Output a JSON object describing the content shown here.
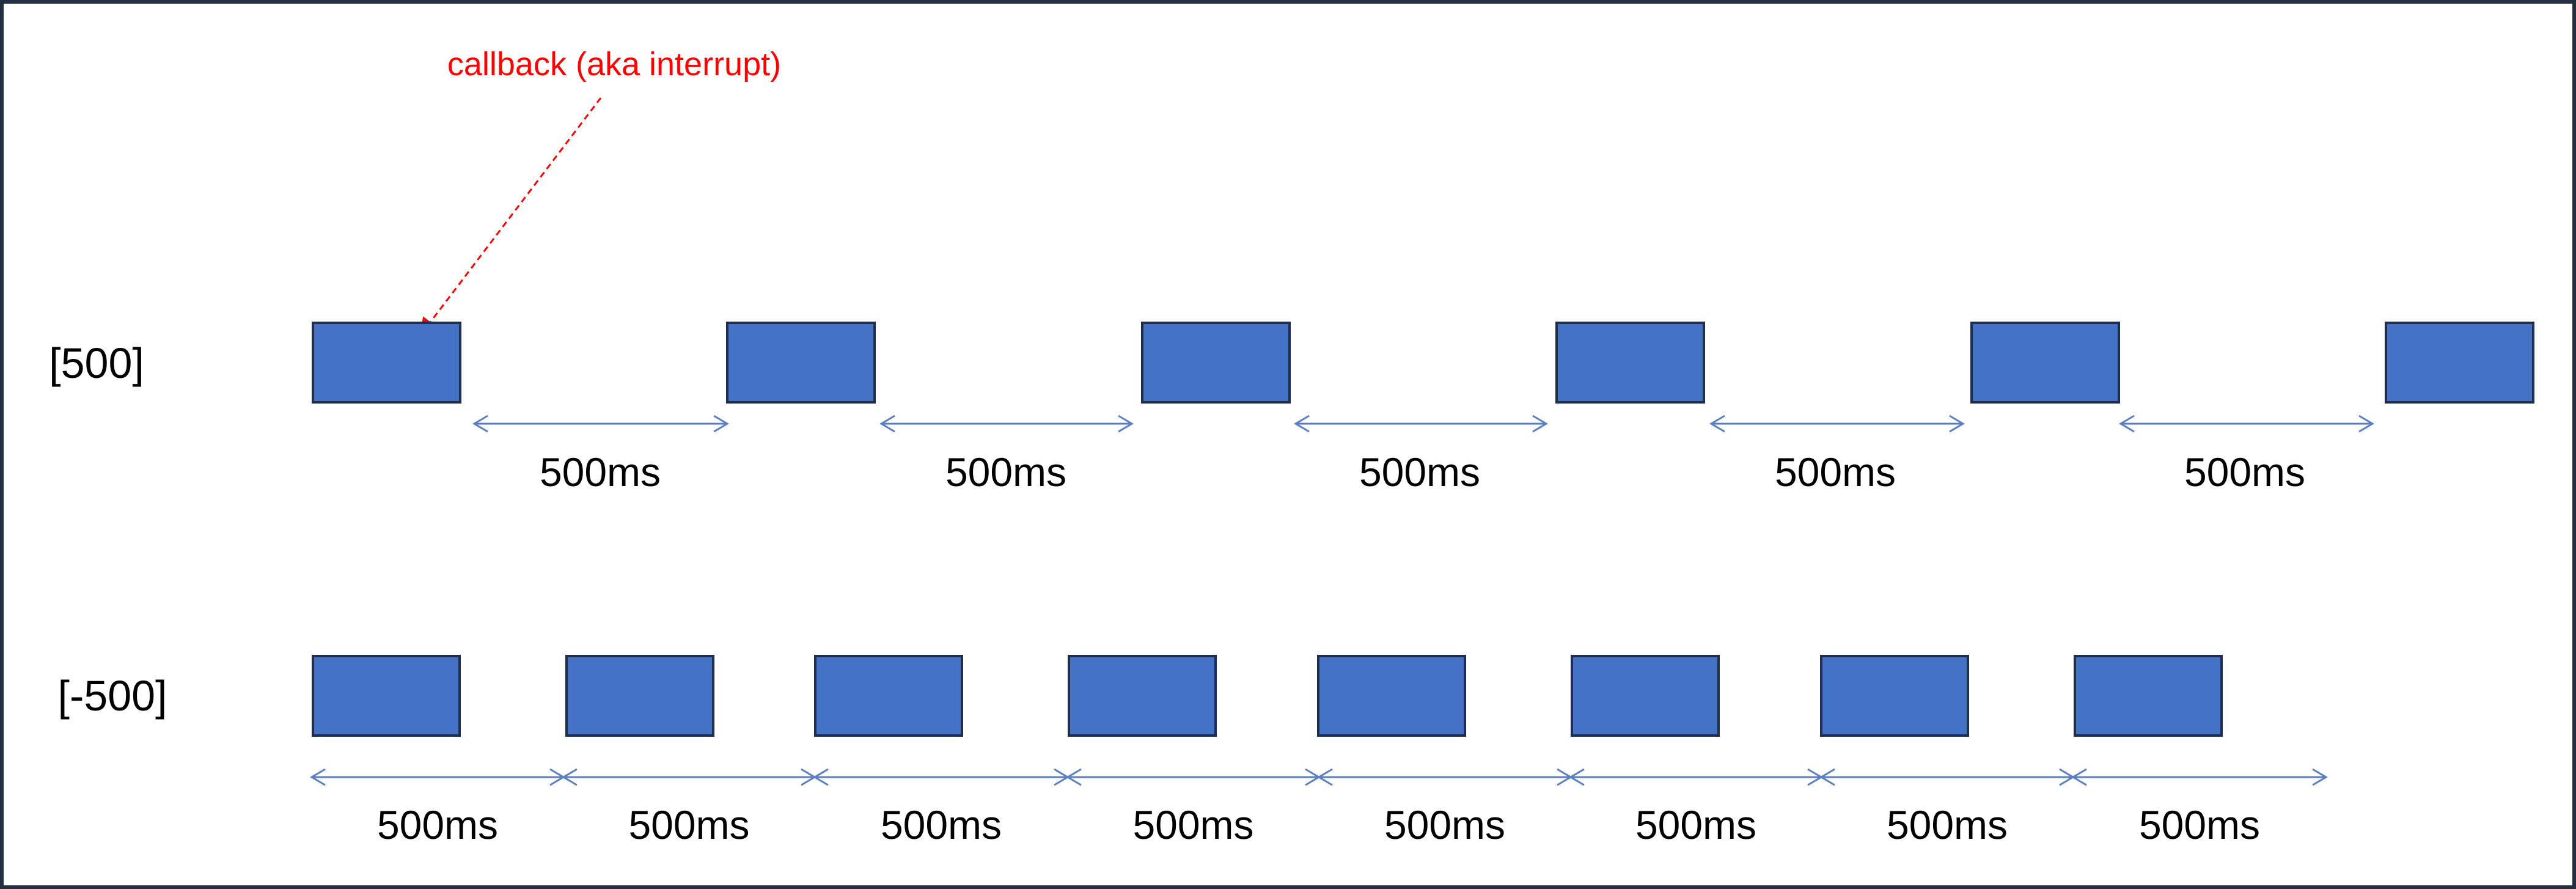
{
  "annotation": {
    "text": "callback (aka interrupt)",
    "color": "#ff0000"
  },
  "colors": {
    "block_fill": "#4472c4",
    "block_stroke": "#1f2d4f",
    "arrow": "#5b7fc4",
    "border": "#243040",
    "text": "#000000"
  },
  "rows": [
    {
      "label": "[500]",
      "block_count": 6,
      "intervals": [
        "500ms",
        "500ms",
        "500ms",
        "500ms",
        "500ms"
      ]
    },
    {
      "label": "[-500]",
      "block_count": 8,
      "intervals": [
        "500ms",
        "500ms",
        "500ms",
        "500ms",
        "500ms",
        "500ms",
        "500ms",
        "500ms"
      ]
    }
  ]
}
